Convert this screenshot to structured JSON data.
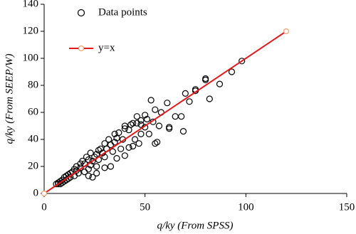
{
  "chart_data": {
    "type": "scatter",
    "x_label": "q/ky  (From SPSS)",
    "y_label": "q/ky  (From SEEP/W)",
    "xlim": [
      0,
      150
    ],
    "xticks": [
      0,
      50,
      100,
      150
    ],
    "ylim": [
      0,
      140
    ],
    "yticks": [
      0,
      20,
      40,
      60,
      80,
      100,
      120,
      140
    ],
    "legend": "upper left",
    "series": [
      {
        "name": "Data points",
        "color": "#000000",
        "x": [
          98,
          93,
          87,
          82,
          80,
          80,
          75,
          75,
          72,
          70,
          68,
          69,
          65,
          62,
          62,
          61,
          58,
          56,
          55,
          55,
          54,
          53,
          50,
          51,
          50,
          48,
          48,
          46,
          46,
          45,
          44,
          43,
          42,
          40,
          40,
          39,
          38,
          37,
          36,
          35,
          35,
          34,
          33,
          32,
          31,
          30,
          30,
          29,
          28,
          27,
          27,
          26,
          26,
          25,
          24,
          23,
          23,
          22,
          22,
          21,
          20,
          20,
          19,
          18,
          18,
          17,
          16,
          16,
          15,
          15,
          14,
          13,
          13,
          12,
          12,
          11,
          11,
          10,
          10,
          9,
          9,
          8,
          8,
          7,
          7,
          6,
          33,
          30,
          36,
          40,
          42,
          47,
          52,
          57,
          44,
          48,
          26,
          24,
          22
        ],
        "values": [
          98,
          90,
          81,
          70,
          84,
          85,
          77,
          76,
          68,
          74,
          57,
          46,
          57,
          49,
          48,
          67,
          60,
          38,
          37,
          62,
          53,
          69,
          58,
          55,
          49,
          44,
          51,
          57,
          52,
          40,
          35,
          51,
          47,
          50,
          48,
          40,
          33,
          45,
          41,
          44,
          38,
          31,
          36,
          40,
          33,
          27,
          37,
          30,
          33,
          25,
          32,
          20,
          29,
          27,
          24,
          30,
          21,
          25,
          18,
          27,
          22,
          16,
          24,
          19,
          22,
          15,
          20,
          17,
          18,
          13,
          16,
          12,
          15,
          14,
          11,
          10,
          13,
          12,
          9,
          10,
          8,
          9,
          7,
          8,
          7,
          7,
          20,
          19,
          26,
          28,
          34,
          37,
          44,
          50,
          52,
          54,
          15,
          12,
          13
        ]
      },
      {
        "name": "y=x",
        "type": "line",
        "color": "#e3191c",
        "marker_color": "#f0a070",
        "x": [
          0,
          120
        ],
        "values": [
          0,
          120
        ]
      }
    ]
  }
}
